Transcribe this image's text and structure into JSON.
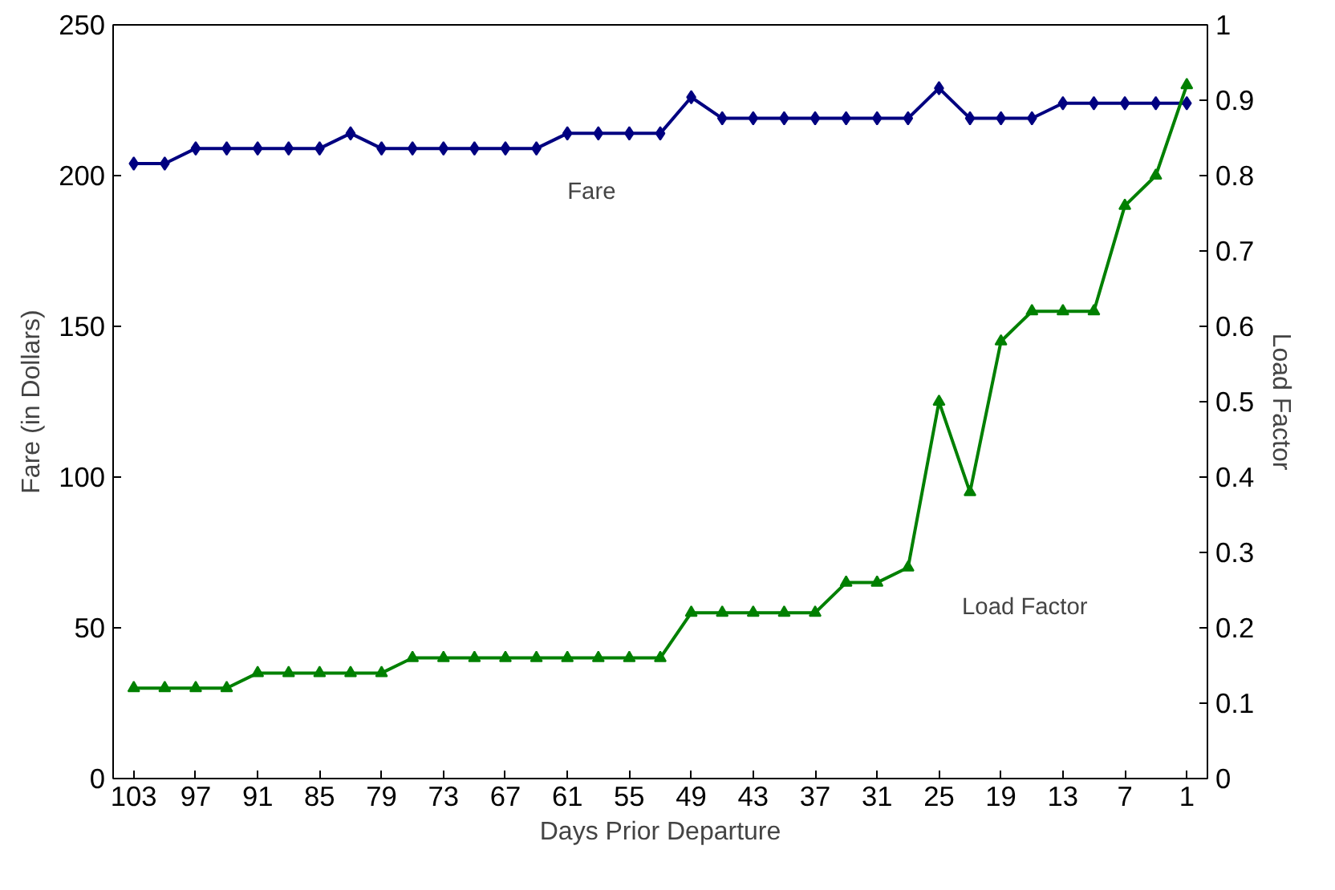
{
  "chart_data": {
    "type": "line",
    "xlabel": "Days Prior Departure",
    "ylabel": "Fare (in Dollars)",
    "y2label": "Load Factor",
    "x": [
      103,
      100,
      97,
      94,
      91,
      88,
      85,
      82,
      79,
      76,
      73,
      70,
      67,
      64,
      61,
      58,
      55,
      52,
      49,
      46,
      43,
      40,
      37,
      34,
      31,
      28,
      25,
      22,
      19,
      16,
      13,
      10,
      7,
      4,
      1
    ],
    "xlim": [
      105,
      -1
    ],
    "xticks": [
      103,
      97,
      91,
      85,
      79,
      73,
      67,
      61,
      55,
      49,
      43,
      37,
      31,
      25,
      19,
      13,
      7,
      1
    ],
    "ylim": [
      0,
      250
    ],
    "yticks": [
      0,
      50,
      100,
      150,
      200,
      250
    ],
    "y2lim": [
      0,
      1
    ],
    "y2ticks": [
      0,
      0.1,
      0.2,
      0.3,
      0.4,
      0.5,
      0.6,
      0.7,
      0.8,
      0.9,
      1
    ],
    "grid": false,
    "legend": false,
    "line_style": "solid",
    "series": [
      {
        "name": "Fare",
        "color": "#000080",
        "marker": "diamond",
        "values": [
          204,
          204,
          209,
          209,
          209,
          209,
          209,
          214,
          209,
          209,
          209,
          209,
          209,
          209,
          214,
          214,
          214,
          214,
          226,
          219,
          219,
          219,
          219,
          219,
          219,
          219,
          229,
          219,
          219,
          219,
          224,
          224,
          224,
          224,
          224
        ]
      },
      {
        "name": "Load Factor",
        "color": "#008000",
        "marker": "triangle",
        "axis": "y2",
        "values": [
          0.12,
          0.12,
          0.12,
          0.12,
          0.14,
          0.14,
          0.14,
          0.14,
          0.14,
          0.16,
          0.16,
          0.16,
          0.16,
          0.16,
          0.16,
          0.16,
          0.16,
          0.16,
          0.22,
          0.22,
          0.22,
          0.22,
          0.22,
          0.26,
          0.26,
          0.28,
          0.5,
          0.38,
          0.58,
          0.62,
          0.62,
          0.62,
          0.76,
          0.8,
          0.92
        ]
      }
    ]
  }
}
